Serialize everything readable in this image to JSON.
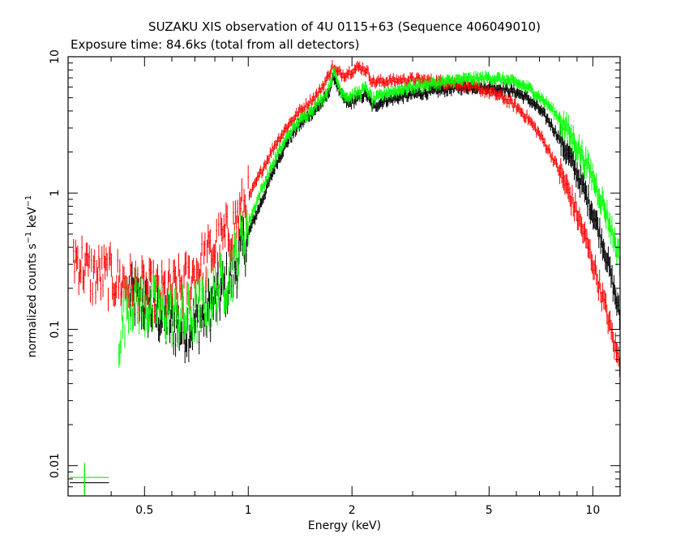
{
  "chart_data": {
    "type": "scatter",
    "title": "SUZAKU XIS observation of 4U 0115+63 (Sequence 406049010)",
    "subtitle": "Exposure time: 84.6ks (total from all detectors)",
    "xlabel": "Energy (keV)",
    "ylabel": {
      "main": "normalized counts s",
      "sup1": "−1",
      "mid": " keV",
      "sup2": "−1"
    },
    "x_scale": "log",
    "y_scale": "log",
    "xlim": [
      0.3,
      12
    ],
    "ylim": [
      0.006,
      10
    ],
    "x_ticks": [
      {
        "value": 0.5,
        "label": "0.5"
      },
      {
        "value": 1,
        "label": "1"
      },
      {
        "value": 2,
        "label": "2"
      },
      {
        "value": 5,
        "label": "5"
      },
      {
        "value": 10,
        "label": "10"
      }
    ],
    "y_ticks": [
      {
        "value": 0.01,
        "label": "0.01"
      },
      {
        "value": 0.1,
        "label": "0.1"
      },
      {
        "value": 1,
        "label": "1"
      },
      {
        "value": 10,
        "label": "10"
      }
    ],
    "grid": false,
    "legend": "none",
    "series": [
      {
        "color": "#000000",
        "points": [
          [
            0.45,
            0.18
          ],
          [
            0.5,
            0.15
          ],
          [
            0.55,
            0.13
          ],
          [
            0.6,
            0.11
          ],
          [
            0.65,
            0.1
          ],
          [
            0.7,
            0.11
          ],
          [
            0.75,
            0.13
          ],
          [
            0.8,
            0.16
          ],
          [
            0.85,
            0.2
          ],
          [
            0.9,
            0.25
          ],
          [
            1.0,
            0.5
          ],
          [
            1.1,
            0.9
          ],
          [
            1.2,
            1.6
          ],
          [
            1.3,
            2.4
          ],
          [
            1.4,
            3.1
          ],
          [
            1.5,
            3.7
          ],
          [
            1.6,
            4.3
          ],
          [
            1.7,
            5.2
          ],
          [
            1.75,
            6.6
          ],
          [
            1.78,
            7.1
          ],
          [
            1.85,
            5.3
          ],
          [
            1.95,
            4.5
          ],
          [
            2.1,
            5.0
          ],
          [
            2.2,
            5.3
          ],
          [
            2.3,
            4.3
          ],
          [
            2.5,
            4.8
          ],
          [
            3.0,
            5.3
          ],
          [
            3.5,
            5.6
          ],
          [
            4.0,
            5.9
          ],
          [
            4.5,
            6.0
          ],
          [
            5.0,
            6.0
          ],
          [
            5.5,
            5.8
          ],
          [
            6.0,
            5.5
          ],
          [
            6.5,
            4.9
          ],
          [
            7.0,
            4.1
          ],
          [
            7.5,
            3.3
          ],
          [
            8.0,
            2.5
          ],
          [
            8.5,
            1.9
          ],
          [
            9.0,
            1.4
          ],
          [
            9.5,
            1.0
          ],
          [
            10.0,
            0.72
          ],
          [
            10.5,
            0.5
          ],
          [
            11.0,
            0.33
          ],
          [
            11.5,
            0.2
          ],
          [
            12.0,
            0.12
          ]
        ],
        "special": [
          [
            0.335,
            0.0075
          ]
        ]
      },
      {
        "color": "#ff0000",
        "points": [
          [
            0.31,
            0.35
          ],
          [
            0.33,
            0.3
          ],
          [
            0.35,
            0.25
          ],
          [
            0.38,
            0.25
          ],
          [
            0.42,
            0.23
          ],
          [
            0.45,
            0.21
          ],
          [
            0.5,
            0.19
          ],
          [
            0.55,
            0.18
          ],
          [
            0.6,
            0.19
          ],
          [
            0.65,
            0.21
          ],
          [
            0.7,
            0.26
          ],
          [
            0.75,
            0.32
          ],
          [
            0.8,
            0.39
          ],
          [
            0.85,
            0.46
          ],
          [
            0.9,
            0.55
          ],
          [
            1.0,
            0.9
          ],
          [
            1.1,
            1.5
          ],
          [
            1.2,
            2.3
          ],
          [
            1.3,
            3.1
          ],
          [
            1.4,
            3.9
          ],
          [
            1.5,
            4.6
          ],
          [
            1.6,
            5.4
          ],
          [
            1.7,
            7.0
          ],
          [
            1.75,
            8.5
          ],
          [
            1.8,
            7.7
          ],
          [
            1.9,
            7.4
          ],
          [
            2.0,
            7.9
          ],
          [
            2.1,
            8.4
          ],
          [
            2.2,
            8.0
          ],
          [
            2.3,
            6.5
          ],
          [
            2.5,
            6.6
          ],
          [
            3.0,
            6.8
          ],
          [
            3.5,
            6.6
          ],
          [
            4.0,
            6.4
          ],
          [
            4.5,
            6.0
          ],
          [
            5.0,
            5.5
          ],
          [
            5.5,
            5.0
          ],
          [
            6.0,
            4.3
          ],
          [
            6.5,
            3.5
          ],
          [
            7.0,
            2.7
          ],
          [
            7.5,
            2.0
          ],
          [
            8.0,
            1.45
          ],
          [
            8.5,
            1.02
          ],
          [
            9.0,
            0.7
          ],
          [
            9.5,
            0.47
          ],
          [
            10.0,
            0.31
          ],
          [
            10.5,
            0.2
          ],
          [
            11.0,
            0.13
          ],
          [
            11.5,
            0.08
          ],
          [
            12.0,
            0.055
          ]
        ],
        "special": []
      },
      {
        "color": "#00ff00",
        "points": [
          [
            0.42,
            0.085
          ],
          [
            0.45,
            0.17
          ],
          [
            0.5,
            0.15
          ],
          [
            0.55,
            0.14
          ],
          [
            0.6,
            0.13
          ],
          [
            0.65,
            0.12
          ],
          [
            0.7,
            0.13
          ],
          [
            0.75,
            0.15
          ],
          [
            0.8,
            0.18
          ],
          [
            0.85,
            0.22
          ],
          [
            0.9,
            0.28
          ],
          [
            1.0,
            0.6
          ],
          [
            1.1,
            1.1
          ],
          [
            1.2,
            1.8
          ],
          [
            1.3,
            2.6
          ],
          [
            1.4,
            3.3
          ],
          [
            1.5,
            3.9
          ],
          [
            1.6,
            4.6
          ],
          [
            1.7,
            5.6
          ],
          [
            1.75,
            7.0
          ],
          [
            1.78,
            7.6
          ],
          [
            1.85,
            5.7
          ],
          [
            1.95,
            5.0
          ],
          [
            2.1,
            5.5
          ],
          [
            2.2,
            5.9
          ],
          [
            2.3,
            4.8
          ],
          [
            2.5,
            5.4
          ],
          [
            3.0,
            6.0
          ],
          [
            3.5,
            6.4
          ],
          [
            4.0,
            6.7
          ],
          [
            4.5,
            6.9
          ],
          [
            5.0,
            7.0
          ],
          [
            5.5,
            6.8
          ],
          [
            6.0,
            6.4
          ],
          [
            6.5,
            5.9
          ],
          [
            7.0,
            5.1
          ],
          [
            7.5,
            4.3
          ],
          [
            8.0,
            3.5
          ],
          [
            8.5,
            2.8
          ],
          [
            9.0,
            2.2
          ],
          [
            9.5,
            1.7
          ],
          [
            10.0,
            1.3
          ],
          [
            10.5,
            0.95
          ],
          [
            11.0,
            0.68
          ],
          [
            11.5,
            0.47
          ],
          [
            12.0,
            0.32
          ]
        ],
        "special": [
          [
            0.335,
            0.0082
          ]
        ]
      }
    ]
  }
}
